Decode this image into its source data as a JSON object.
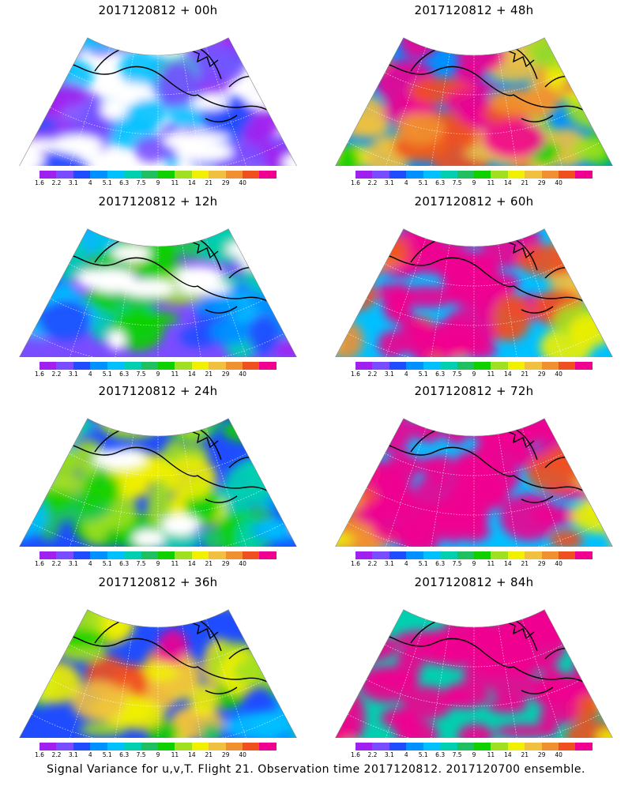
{
  "panels": [
    {
      "title": "2017120812 + 00h",
      "level": 0
    },
    {
      "title": "2017120812 + 48h",
      "level": 4
    },
    {
      "title": "2017120812 + 12h",
      "level": 1
    },
    {
      "title": "2017120812 + 60h",
      "level": 5
    },
    {
      "title": "2017120812 + 24h",
      "level": 2
    },
    {
      "title": "2017120812 + 72h",
      "level": 6
    },
    {
      "title": "2017120812 + 36h",
      "level": 3
    },
    {
      "title": "2017120812 + 84h",
      "level": 7
    }
  ],
  "colorbar": {
    "labels": [
      "1.6",
      "2.2",
      "3.1",
      "4",
      "5.1",
      "6.3",
      "7.5",
      "9",
      "11",
      "14",
      "21",
      "29",
      "40"
    ],
    "colors": [
      "#a020f0",
      "#7a4cff",
      "#1f4cff",
      "#0090ff",
      "#00c0ff",
      "#00d0b0",
      "#20c060",
      "#10d000",
      "#a0e020",
      "#f0f000",
      "#f0c040",
      "#f09030",
      "#f05020",
      "#f00090"
    ]
  },
  "footer": "Signal Variance for u,v,T. Flight 21. Observation time 2017120812. 2017120700 ensemble."
}
